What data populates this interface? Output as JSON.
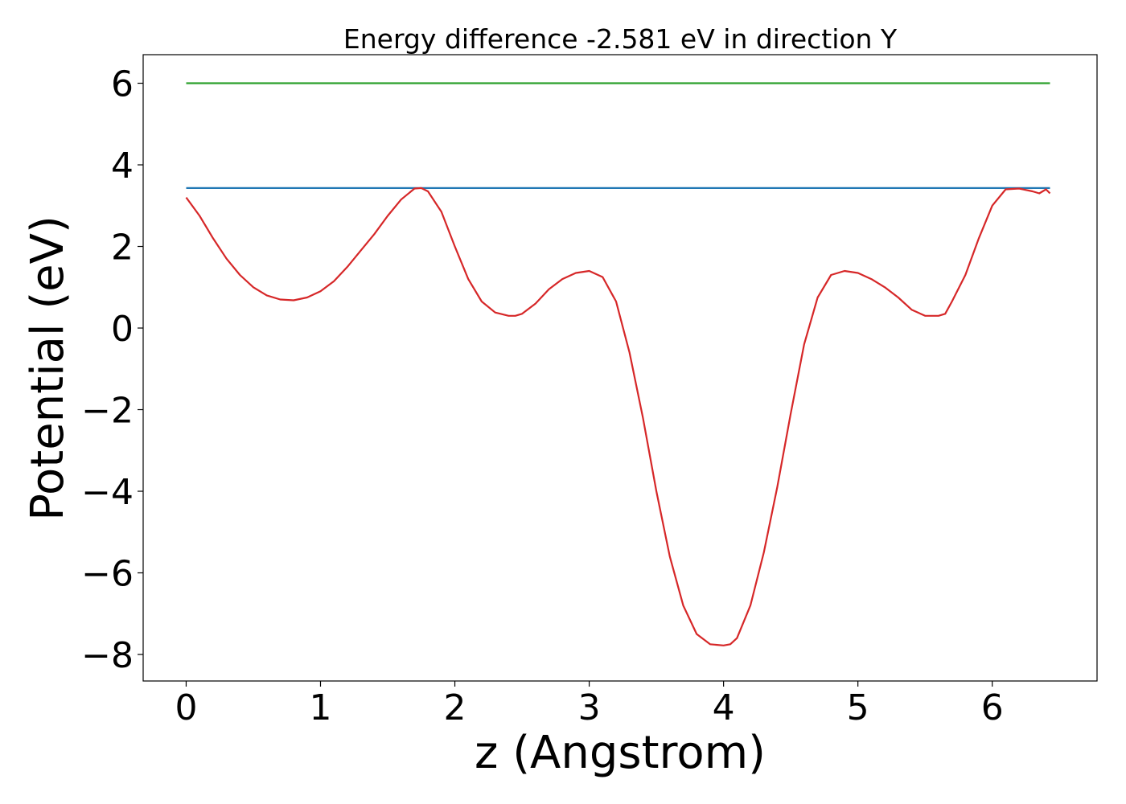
{
  "chart_data": {
    "type": "line",
    "title": "Energy difference -2.581 eV in direction Y",
    "xlabel": "z (Angstrom)",
    "ylabel": "Potential (eV)",
    "xlim": [
      -0.32,
      6.78
    ],
    "ylim": [
      -8.65,
      6.7
    ],
    "xticks": [
      0,
      1,
      2,
      3,
      4,
      5,
      6
    ],
    "yticks": [
      -8,
      -6,
      -4,
      -2,
      0,
      2,
      4,
      6
    ],
    "xtick_labels": [
      "0",
      "1",
      "2",
      "3",
      "4",
      "5",
      "6"
    ],
    "ytick_labels": [
      "−8",
      "−6",
      "−4",
      "−2",
      "0",
      "2",
      "4",
      "6"
    ],
    "grid": false,
    "legend": "none",
    "series": [
      {
        "color": "#2ca02c",
        "x": [
          0,
          6.43
        ],
        "y": [
          6.0,
          6.0
        ]
      },
      {
        "color": "#1f77b4",
        "x": [
          0,
          6.43
        ],
        "y": [
          3.43,
          3.43
        ]
      },
      {
        "color": "#d62728",
        "x": [
          0.0,
          0.1,
          0.2,
          0.3,
          0.4,
          0.5,
          0.6,
          0.7,
          0.8,
          0.9,
          1.0,
          1.1,
          1.2,
          1.3,
          1.4,
          1.5,
          1.6,
          1.7,
          1.75,
          1.8,
          1.9,
          2.0,
          2.1,
          2.2,
          2.3,
          2.4,
          2.45,
          2.5,
          2.6,
          2.7,
          2.8,
          2.9,
          3.0,
          3.1,
          3.2,
          3.3,
          3.4,
          3.5,
          3.6,
          3.7,
          3.8,
          3.9,
          4.0,
          4.05,
          4.1,
          4.2,
          4.3,
          4.4,
          4.5,
          4.6,
          4.7,
          4.8,
          4.9,
          5.0,
          5.1,
          5.2,
          5.3,
          5.4,
          5.5,
          5.6,
          5.65,
          5.7,
          5.8,
          5.9,
          6.0,
          6.1,
          6.2,
          6.3,
          6.35,
          6.4,
          6.43
        ],
        "y": [
          3.2,
          2.75,
          2.2,
          1.7,
          1.3,
          1.0,
          0.8,
          0.7,
          0.68,
          0.75,
          0.9,
          1.15,
          1.5,
          1.9,
          2.3,
          2.75,
          3.15,
          3.42,
          3.43,
          3.35,
          2.85,
          2.0,
          1.2,
          0.65,
          0.38,
          0.3,
          0.3,
          0.35,
          0.6,
          0.95,
          1.2,
          1.35,
          1.4,
          1.25,
          0.65,
          -0.6,
          -2.2,
          -4.0,
          -5.6,
          -6.8,
          -7.5,
          -7.75,
          -7.78,
          -7.75,
          -7.6,
          -6.8,
          -5.5,
          -3.9,
          -2.1,
          -0.4,
          0.75,
          1.3,
          1.4,
          1.35,
          1.2,
          1.0,
          0.75,
          0.45,
          0.3,
          0.3,
          0.35,
          0.65,
          1.3,
          2.2,
          3.0,
          3.4,
          3.42,
          3.35,
          3.3,
          3.4,
          3.3
        ]
      }
    ]
  }
}
